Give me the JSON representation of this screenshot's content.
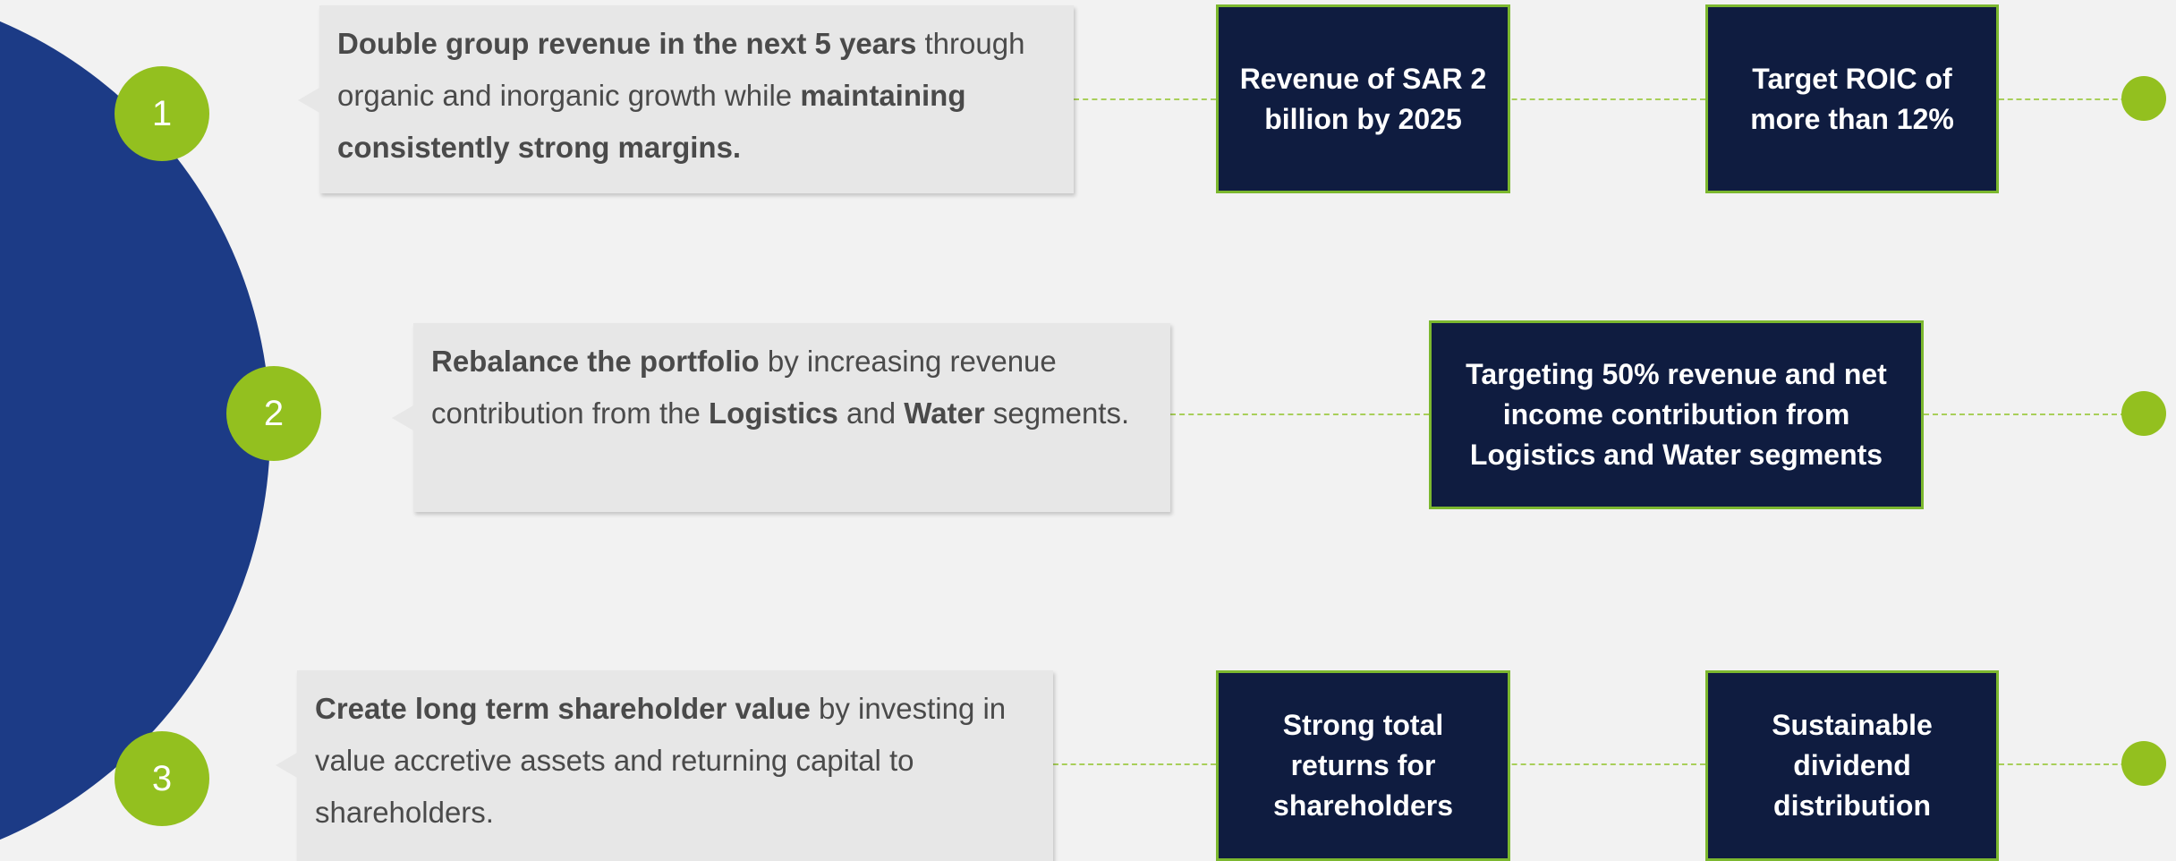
{
  "rows": [
    {
      "number": "1",
      "description": [
        {
          "text": "Double group revenue in the next 5 years",
          "bold": true
        },
        {
          "text": " through organic and inorganic growth while ",
          "bold": false
        },
        {
          "text": "maintaining consistently strong margins.",
          "bold": true
        }
      ],
      "targets": [
        "Revenue of SAR 2 billion by 2025",
        "Target ROIC of more than 12%"
      ]
    },
    {
      "number": "2",
      "description": [
        {
          "text": "Rebalance the portfolio",
          "bold": true
        },
        {
          "text": " by increasing revenue contribution from the ",
          "bold": false
        },
        {
          "text": "Logistics",
          "bold": true
        },
        {
          "text": " and ",
          "bold": false
        },
        {
          "text": "Water",
          "bold": true
        },
        {
          "text": " segments.",
          "bold": false
        }
      ],
      "targets": [
        "Targeting 50% revenue and net income contribution from Logistics and Water segments"
      ]
    },
    {
      "number": "3",
      "description": [
        {
          "text": "Create long term shareholder value",
          "bold": true
        },
        {
          "text": " by investing in value accretive assets and returning capital to shareholders.",
          "bold": false
        }
      ],
      "targets": [
        "Strong total returns for shareholders",
        "Sustainable dividend distribution"
      ]
    }
  ]
}
